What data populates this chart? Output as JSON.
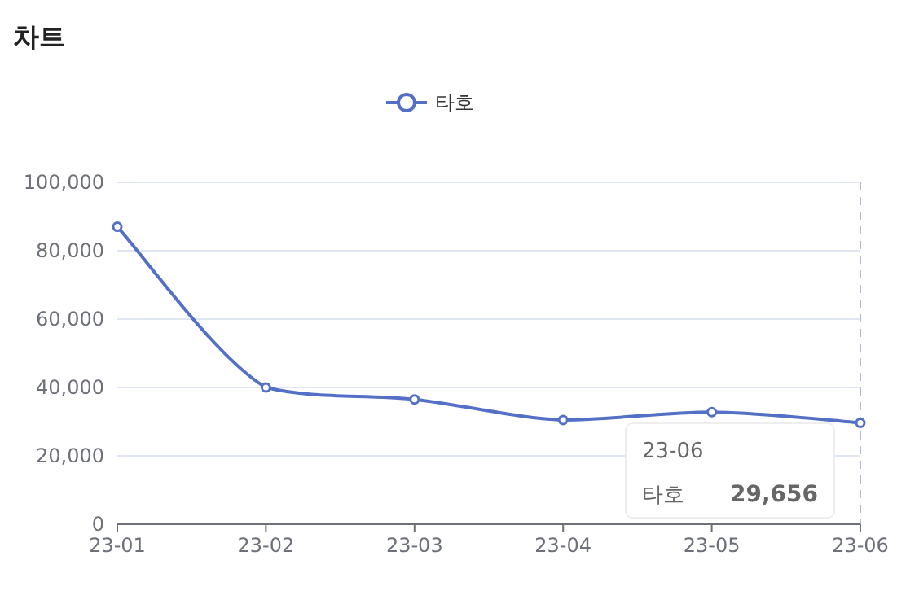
{
  "chart_data": {
    "type": "line",
    "title": "차트",
    "categories": [
      "23-01",
      "23-02",
      "23-03",
      "23-04",
      "23-05",
      "23-06"
    ],
    "series": [
      {
        "name": "타호",
        "color": "#5470c6",
        "values": [
          87000,
          40000,
          36500,
          30500,
          32800,
          29656
        ]
      }
    ],
    "ylim": [
      0,
      100000
    ],
    "yticks": [
      {
        "value": 0,
        "label": "0"
      },
      {
        "value": 20000,
        "label": "20,000"
      },
      {
        "value": 40000,
        "label": "40,000"
      },
      {
        "value": 60000,
        "label": "60,000"
      },
      {
        "value": 80000,
        "label": "80,000"
      },
      {
        "value": 100000,
        "label": "100,000"
      }
    ],
    "grid": "y",
    "legend": "top",
    "marker": "circle",
    "line_style": "solid",
    "ref_lines": [
      {
        "axis": "x",
        "value": "23-06",
        "color": "#b3b6d9",
        "line_style": "dashed"
      }
    ],
    "annotations": [
      "23-06",
      "29,656"
    ]
  }
}
